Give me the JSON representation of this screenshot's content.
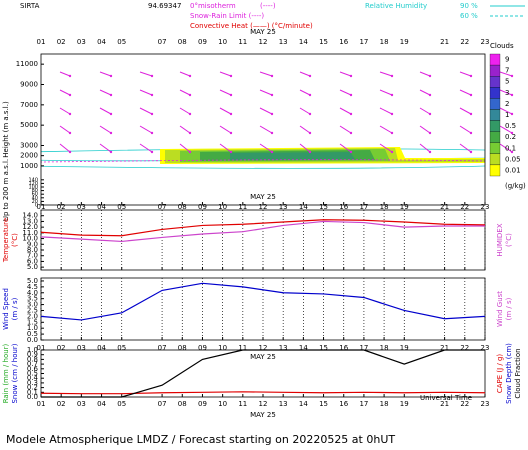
{
  "header": {
    "station": "SIRTA",
    "coords": "94.69347",
    "isotherm": "0°misotherm",
    "isotherm_style": "(----)",
    "snow_rain": "Snow-Rain Limit (----)",
    "convective": "Convective Heat (——) (°C/minute)",
    "rh_label": "Relative Humidity",
    "rh_high": "90 %",
    "rh_low": "60 %"
  },
  "footer": {
    "time_label": "Universal Time",
    "model": "Modele Atmospherique LMDZ / Forecast starting on 20220525 at 0hUT"
  },
  "chart_data": [
    {
      "type": "contour",
      "date": "MAY 25",
      "ylabels": [
        "Height (m a.s.l.)"
      ],
      "ylabel_colors": [
        "#000000"
      ],
      "ylim": [
        0,
        12000
      ],
      "yticks": [
        1000,
        2000,
        3000,
        5000,
        7000,
        9000,
        11000
      ],
      "y2labels": [
        "Up to 200 m a.s.l."
      ],
      "y2lim": [
        0,
        150
      ],
      "y2ticks": [
        0,
        20,
        40,
        60,
        80,
        100,
        120,
        140
      ],
      "xlim": [
        1,
        23
      ],
      "xticks": [
        {
          "value": 1,
          "label": "01"
        },
        {
          "value": 2,
          "label": "02"
        },
        {
          "value": 3,
          "label": "03"
        },
        {
          "value": 4,
          "label": "04"
        },
        {
          "value": 5,
          "label": "05"
        },
        {
          "value": 7,
          "label": "07"
        },
        {
          "value": 8,
          "label": "08"
        },
        {
          "value": 9,
          "label": "09"
        },
        {
          "value": 10,
          "label": "10"
        },
        {
          "value": 11,
          "label": "11"
        },
        {
          "value": 12,
          "label": "12"
        },
        {
          "value": 13,
          "label": "13"
        },
        {
          "value": 14,
          "label": "14"
        },
        {
          "value": 15,
          "label": "15"
        },
        {
          "value": 16,
          "label": "16"
        },
        {
          "value": 17,
          "label": "17"
        },
        {
          "value": 18,
          "label": "18"
        },
        {
          "value": 19,
          "label": "19"
        },
        {
          "value": 21,
          "label": "21"
        },
        {
          "value": 22,
          "label": "22"
        },
        {
          "value": 23,
          "label": "23"
        }
      ],
      "colorbar": {
        "title": "Clouds",
        "unit": "(g/kg)",
        "levels": [
          9,
          7,
          5,
          3,
          2,
          1,
          0.5,
          0.2,
          0.1,
          0.05,
          0.01
        ],
        "colors": [
          "#ee22ee",
          "#9922cc",
          "#6633cc",
          "#3333cc",
          "#3366cc",
          "#338899",
          "#339966",
          "#44aa44",
          "#77cc33",
          "#bbdd22",
          "#ffff00"
        ]
      }
    },
    {
      "type": "line",
      "date": "MAY 25",
      "ylabels": [
        "Temperature",
        "(°C)"
      ],
      "ylabel_colors": [
        "#e00000",
        "#e00000"
      ],
      "y2labels": [
        "HUMIDEX",
        "(°C)"
      ],
      "y2label_colors": [
        "#cc44cc",
        "#cc44cc"
      ],
      "ylim": [
        4.5,
        15
      ],
      "yticks": [
        {
          "value": 5,
          "label": "5.0"
        },
        {
          "value": 6,
          "label": "6.0"
        },
        {
          "value": 7,
          "label": "7.0"
        },
        {
          "value": 8,
          "label": "8.0"
        },
        {
          "value": 9,
          "label": "9.0"
        },
        {
          "value": 10,
          "label": "10.0"
        },
        {
          "value": 11,
          "label": "11.0"
        },
        {
          "value": 12,
          "label": "12.0"
        },
        {
          "value": 13,
          "label": "13.0"
        },
        {
          "value": 14,
          "label": "14.0"
        }
      ],
      "xlim": [
        1,
        23
      ],
      "xticks": [
        {
          "value": 1,
          "label": "01"
        },
        {
          "value": 2,
          "label": "02"
        },
        {
          "value": 3,
          "label": "03"
        },
        {
          "value": 4,
          "label": "04"
        },
        {
          "value": 5,
          "label": "05"
        },
        {
          "value": 7,
          "label": "07"
        },
        {
          "value": 8,
          "label": "08"
        },
        {
          "value": 9,
          "label": "09"
        },
        {
          "value": 10,
          "label": "10"
        },
        {
          "value": 11,
          "label": "11"
        },
        {
          "value": 12,
          "label": "12"
        },
        {
          "value": 13,
          "label": "13"
        },
        {
          "value": 14,
          "label": "14"
        },
        {
          "value": 15,
          "label": "15"
        },
        {
          "value": 16,
          "label": "16"
        },
        {
          "value": 17,
          "label": "17"
        },
        {
          "value": 18,
          "label": "18"
        },
        {
          "value": 19,
          "label": "19"
        },
        {
          "value": 21,
          "label": "21"
        },
        {
          "value": 22,
          "label": "22"
        },
        {
          "value": 23,
          "label": "23"
        }
      ],
      "x": [
        1,
        3,
        5,
        7,
        9,
        11,
        13,
        15,
        17,
        19,
        21,
        23
      ],
      "grid": true,
      "series": [
        {
          "color": "#e00000",
          "values": [
            11.1,
            10.6,
            10.5,
            11.6,
            12.3,
            12.5,
            12.9,
            13.3,
            13.2,
            12.9,
            12.5,
            12.4
          ]
        },
        {
          "color": "#cc44cc",
          "values": [
            10.3,
            9.9,
            9.5,
            10.2,
            10.8,
            11.2,
            12.3,
            13.0,
            12.8,
            12.0,
            12.2,
            12.2
          ]
        }
      ]
    },
    {
      "type": "line",
      "date": "MAY 25",
      "ylabels": [
        "Wind Speed",
        "(m / s)"
      ],
      "ylabel_colors": [
        "#0000cc",
        "#0000cc"
      ],
      "y2labels": [
        "Wind Gust",
        "(m / s)"
      ],
      "y2label_colors": [
        "#cc44cc",
        "#cc44cc"
      ],
      "ylim": [
        0,
        5.25
      ],
      "yticks": [
        {
          "value": 0,
          "label": "0.0"
        },
        {
          "value": 0.5,
          "label": "0.5"
        },
        {
          "value": 1,
          "label": "1.0"
        },
        {
          "value": 1.5,
          "label": "1.5"
        },
        {
          "value": 2,
          "label": "2.0"
        },
        {
          "value": 2.5,
          "label": "2.5"
        },
        {
          "value": 3,
          "label": "3.0"
        },
        {
          "value": 3.5,
          "label": "3.5"
        },
        {
          "value": 4,
          "label": "4.0"
        },
        {
          "value": 4.5,
          "label": "4.5"
        },
        {
          "value": 5,
          "label": "5.0"
        }
      ],
      "xlim": [
        1,
        23
      ],
      "xticks": [
        {
          "value": 1,
          "label": "01"
        },
        {
          "value": 2,
          "label": "02"
        },
        {
          "value": 3,
          "label": "03"
        },
        {
          "value": 4,
          "label": "04"
        },
        {
          "value": 5,
          "label": "05"
        },
        {
          "value": 7,
          "label": "07"
        },
        {
          "value": 8,
          "label": "08"
        },
        {
          "value": 9,
          "label": "09"
        },
        {
          "value": 10,
          "label": "10"
        },
        {
          "value": 11,
          "label": "11"
        },
        {
          "value": 12,
          "label": "12"
        },
        {
          "value": 13,
          "label": "13"
        },
        {
          "value": 14,
          "label": "14"
        },
        {
          "value": 15,
          "label": "15"
        },
        {
          "value": 16,
          "label": "16"
        },
        {
          "value": 17,
          "label": "17"
        },
        {
          "value": 18,
          "label": "18"
        },
        {
          "value": 19,
          "label": "19"
        },
        {
          "value": 21,
          "label": "21"
        },
        {
          "value": 22,
          "label": "22"
        },
        {
          "value": 23,
          "label": "23"
        }
      ],
      "x": [
        1,
        3,
        5,
        7,
        9,
        11,
        13,
        15,
        17,
        19,
        21,
        23
      ],
      "grid": true,
      "series": [
        {
          "color": "#0000cc",
          "values": [
            2.0,
            1.7,
            2.3,
            4.2,
            4.8,
            4.5,
            4.0,
            3.9,
            3.6,
            2.5,
            1.8,
            2.0
          ]
        }
      ]
    },
    {
      "type": "line",
      "date": "MAY 25",
      "ylabels": [
        "Rain (mm / hour)",
        "Snow (cm / hour)"
      ],
      "ylabel_colors": [
        "#22aa22",
        "#0000cc"
      ],
      "y2labels": [
        "CAPE (J / g)",
        "Snow Depth (cm)",
        "Cloud Fraction"
      ],
      "y2label_colors": [
        "#e00000",
        "#0000cc",
        "#000000"
      ],
      "ylim": [
        0,
        1
      ],
      "yticks": [
        {
          "value": 0,
          "label": "0.0"
        },
        {
          "value": 0.1,
          "label": "0.1"
        },
        {
          "value": 0.2,
          "label": "0.2"
        },
        {
          "value": 0.3,
          "label": "0.3"
        },
        {
          "value": 0.4,
          "label": "0.4"
        },
        {
          "value": 0.5,
          "label": "0.5"
        },
        {
          "value": 0.6,
          "label": "0.6"
        },
        {
          "value": 0.7,
          "label": "0.7"
        },
        {
          "value": 0.8,
          "label": "0.8"
        },
        {
          "value": 0.9,
          "label": "0.9"
        },
        {
          "value": 1,
          "label": "1.0"
        }
      ],
      "xlim": [
        1,
        23
      ],
      "xticks": [
        {
          "value": 1,
          "label": "01"
        },
        {
          "value": 2,
          "label": "02"
        },
        {
          "value": 3,
          "label": "03"
        },
        {
          "value": 4,
          "label": "04"
        },
        {
          "value": 5,
          "label": "05"
        },
        {
          "value": 7,
          "label": "07"
        },
        {
          "value": 8,
          "label": "08"
        },
        {
          "value": 9,
          "label": "09"
        },
        {
          "value": 10,
          "label": "10"
        },
        {
          "value": 11,
          "label": "11"
        },
        {
          "value": 12,
          "label": "12"
        },
        {
          "value": 13,
          "label": "13"
        },
        {
          "value": 14,
          "label": "14"
        },
        {
          "value": 15,
          "label": "15"
        },
        {
          "value": 16,
          "label": "16"
        },
        {
          "value": 17,
          "label": "17"
        },
        {
          "value": 18,
          "label": "18"
        },
        {
          "value": 19,
          "label": "19"
        },
        {
          "value": 21,
          "label": "21"
        },
        {
          "value": 22,
          "label": "22"
        },
        {
          "value": 23,
          "label": "23"
        }
      ],
      "x": [
        1,
        3,
        5,
        7,
        9,
        11,
        13,
        15,
        17,
        19,
        21,
        23
      ],
      "grid": false,
      "series": [
        {
          "color": "#e00000",
          "values": [
            0.08,
            0.07,
            0.07,
            0.09,
            0.1,
            0.11,
            0.1,
            0.09,
            0.1,
            0.09,
            0.1,
            0.09
          ]
        },
        {
          "color": "#000000",
          "values": [
            0,
            0,
            0,
            0.25,
            0.8,
            1.0,
            1.0,
            1.0,
            1.0,
            0.7,
            1.0,
            1.0
          ]
        }
      ]
    }
  ]
}
